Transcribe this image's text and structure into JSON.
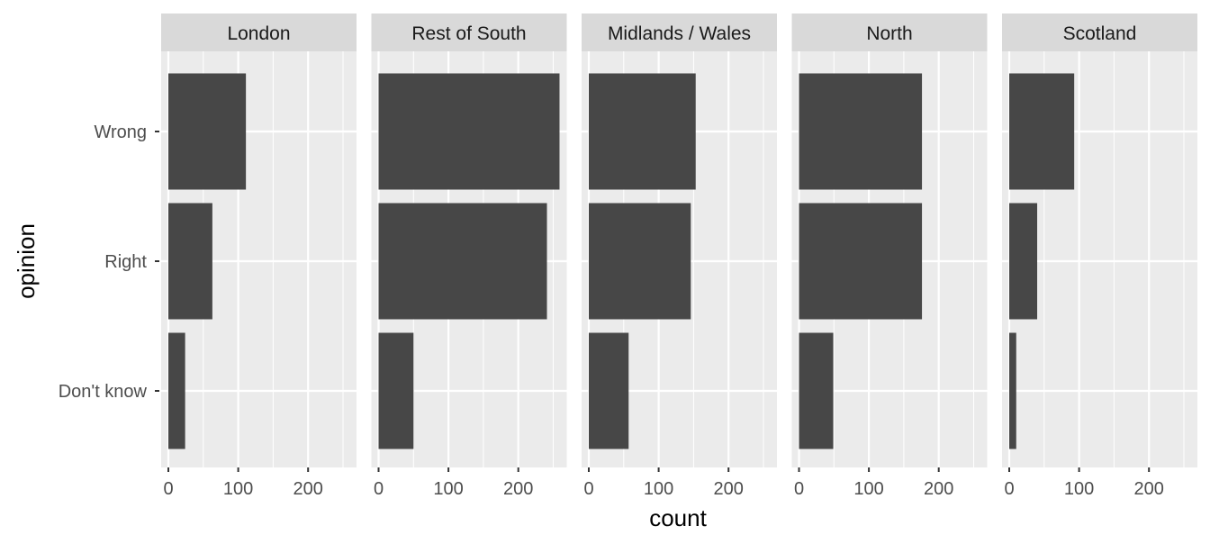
{
  "chart_data": {
    "type": "bar",
    "orientation": "horizontal",
    "facet_by": "region",
    "xlabel": "count",
    "ylabel": "opinion",
    "xlim": [
      0,
      265
    ],
    "x_ticks": [
      0,
      100,
      200
    ],
    "categories": [
      "Wrong",
      "Right",
      "Don't know"
    ],
    "grid": true,
    "colors": {
      "bar": "#474747",
      "panel": "#ebebeb",
      "strip": "#d9d9d9",
      "grid": "#ffffff"
    },
    "panels": [
      {
        "name": "London",
        "values": [
          111,
          63,
          24
        ]
      },
      {
        "name": "Rest of South",
        "values": [
          259,
          241,
          50
        ]
      },
      {
        "name": "Midlands / Wales",
        "values": [
          153,
          146,
          57
        ]
      },
      {
        "name": "North",
        "values": [
          176,
          176,
          49
        ]
      },
      {
        "name": "Scotland",
        "values": [
          93,
          40,
          10
        ]
      }
    ]
  }
}
